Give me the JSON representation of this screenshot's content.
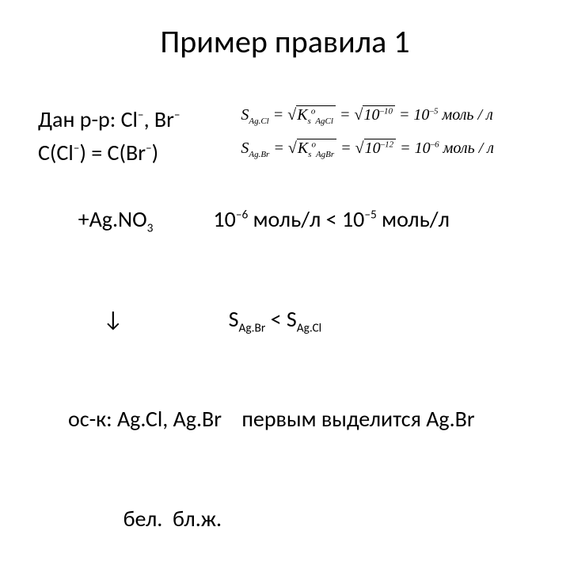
{
  "colors": {
    "bg": "#ffffff",
    "text": "#000000"
  },
  "title": "Пример правила 1",
  "line1_left": "Дан р-р:   Cl",
  "line1_sup1": "–",
  "line1_mid": ", Br",
  "line1_sup2": "–",
  "formula1_pre": "S",
  "formula1_sub1": "Ag.Cl",
  "formula1_eq": " = ",
  "formula1_rad1a": "K",
  "formula1_rad1b": "s",
  "formula1_rad1c": "o",
  "formula1_rad1d": "AgCl",
  "formula1_mid": " = ",
  "formula1_rad2a": "10",
  "formula1_rad2b": "–10",
  "formula1_after": " = 10",
  "formula1_exp": "–5",
  "formula1_units": " моль / л",
  "line2_a": "C(Cl",
  "line2_sup1": "–",
  "line2_b": ") = C(Br",
  "line2_sup2": "–",
  "line2_c": ")",
  "formula2_pre": "S",
  "formula2_sub1": "Ag.Br",
  "formula2_eq": " = ",
  "formula2_rad1a": "K",
  "formula2_rad1b": "s",
  "formula2_rad1c": "o",
  "formula2_rad1d": "AgBr",
  "formula2_mid": " = ",
  "formula2_rad2a": "10",
  "formula2_rad2b": "–12",
  "formula2_after": " = 10",
  "formula2_exp": "–6",
  "formula2_units": " моль / л",
  "line3_left": "  +Ag.NO",
  "line3_sub": "3",
  "line3_right_a": "            10",
  "line3_right_b": "–6",
  "line3_right_c": " моль/л < 10",
  "line3_right_d": "–5",
  "line3_right_e": " моль/л",
  "line4_arrow": "       ↓",
  "line4_right_a": "                     S",
  "line4_right_b": "Ag.Br",
  "line4_right_c": " < S",
  "line4_right_d": "Ag.Cl",
  "line5_left": "ос-к: Ag.Cl, Ag.Br",
  "line5_right": "    первым выделится Ag.Br",
  "line6": "           бел.  бл.ж."
}
